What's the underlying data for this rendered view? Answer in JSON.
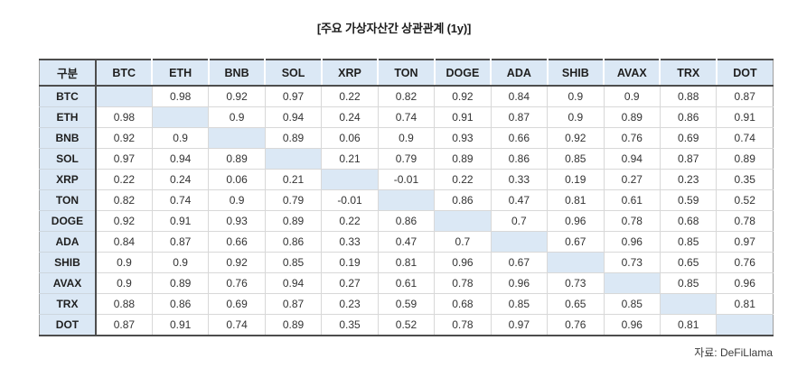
{
  "title": "[주요 가상자산간 상관관계 (1y)]",
  "source": "자료: DeFiLlama",
  "colors": {
    "header_fill": "#dbe8f5",
    "diagonal_fill": "#dbe8f5",
    "border_dark": "#4d4d4d",
    "border_light": "#d8d8d8",
    "background": "#ffffff"
  },
  "chart_data": {
    "type": "heatmap",
    "title": "[주요 가상자산간 상관관계 (1y)]",
    "corner_label": "구분",
    "categories": [
      "BTC",
      "ETH",
      "BNB",
      "SOL",
      "XRP",
      "TON",
      "DOGE",
      "ADA",
      "SHIB",
      "AVAX",
      "TRX",
      "DOT"
    ],
    "matrix": [
      [
        null,
        0.98,
        0.92,
        0.97,
        0.22,
        0.82,
        0.92,
        0.84,
        0.9,
        0.9,
        0.88,
        0.87
      ],
      [
        0.98,
        null,
        0.9,
        0.94,
        0.24,
        0.74,
        0.91,
        0.87,
        0.9,
        0.89,
        0.86,
        0.91
      ],
      [
        0.92,
        0.9,
        null,
        0.89,
        0.06,
        0.9,
        0.93,
        0.66,
        0.92,
        0.76,
        0.69,
        0.74
      ],
      [
        0.97,
        0.94,
        0.89,
        null,
        0.21,
        0.79,
        0.89,
        0.86,
        0.85,
        0.94,
        0.87,
        0.89
      ],
      [
        0.22,
        0.24,
        0.06,
        0.21,
        null,
        -0.01,
        0.22,
        0.33,
        0.19,
        0.27,
        0.23,
        0.35
      ],
      [
        0.82,
        0.74,
        0.9,
        0.79,
        -0.01,
        null,
        0.86,
        0.47,
        0.81,
        0.61,
        0.59,
        0.52
      ],
      [
        0.92,
        0.91,
        0.93,
        0.89,
        0.22,
        0.86,
        null,
        0.7,
        0.96,
        0.78,
        0.68,
        0.78
      ],
      [
        0.84,
        0.87,
        0.66,
        0.86,
        0.33,
        0.47,
        0.7,
        null,
        0.67,
        0.96,
        0.85,
        0.97
      ],
      [
        0.9,
        0.9,
        0.92,
        0.85,
        0.19,
        0.81,
        0.96,
        0.67,
        null,
        0.73,
        0.65,
        0.76
      ],
      [
        0.9,
        0.89,
        0.76,
        0.94,
        0.27,
        0.61,
        0.78,
        0.96,
        0.73,
        null,
        0.85,
        0.96
      ],
      [
        0.88,
        0.86,
        0.69,
        0.87,
        0.23,
        0.59,
        0.68,
        0.85,
        0.65,
        0.85,
        null,
        0.81
      ],
      [
        0.87,
        0.91,
        0.74,
        0.89,
        0.35,
        0.52,
        0.78,
        0.97,
        0.76,
        0.96,
        0.81,
        null
      ]
    ],
    "diagonal_cells": "blank-highlighted",
    "source": "자료: DeFiLlama",
    "legend": "none",
    "grid": true
  }
}
